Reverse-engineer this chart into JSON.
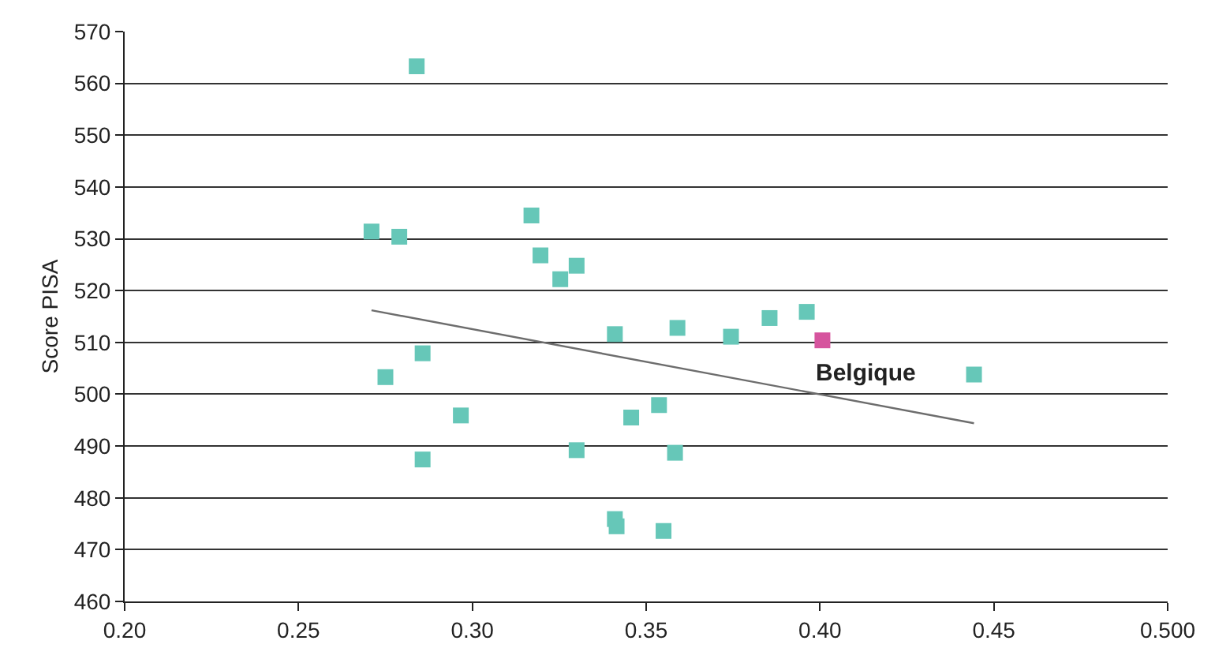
{
  "chart_data": {
    "type": "scatter",
    "ylabel": "Score PISA",
    "xlim": [
      0.2,
      0.5
    ],
    "xticks": [
      {
        "value": 0.2,
        "label": "0.20"
      },
      {
        "value": 0.25,
        "label": "0.25"
      },
      {
        "value": 0.3,
        "label": "0.30"
      },
      {
        "value": 0.35,
        "label": "0.35"
      },
      {
        "value": 0.4,
        "label": "0.40"
      },
      {
        "value": 0.45,
        "label": "0.45"
      },
      {
        "value": 0.5,
        "label": "0.500"
      }
    ],
    "ylim": [
      460,
      570
    ],
    "yticks": [
      460,
      470,
      480,
      490,
      500,
      510,
      520,
      530,
      540,
      550,
      560,
      570
    ],
    "grid": "y",
    "marker": "square",
    "series": [
      {
        "x": [
          0.284,
          0.271,
          0.279,
          0.317,
          0.3196,
          0.33,
          0.3253,
          0.341,
          0.359,
          0.3744,
          0.2857,
          0.275,
          0.2967,
          0.3457,
          0.3537,
          0.33,
          0.3583,
          0.2857,
          0.341,
          0.3415,
          0.355,
          0.3855,
          0.3962,
          0.4007,
          0.4443
        ],
        "values": [
          563.3,
          531.4,
          530.4,
          534.5,
          526.8,
          524.8,
          522.2,
          511.6,
          512.8,
          511.1,
          507.9,
          503.3,
          495.9,
          495.5,
          497.9,
          489.2,
          488.7,
          487.4,
          475.9,
          474.5,
          473.6,
          514.7,
          515.9,
          510.4,
          503.8
        ],
        "colors": [
          "#66c7b8",
          "#66c7b8",
          "#66c7b8",
          "#66c7b8",
          "#66c7b8",
          "#66c7b8",
          "#66c7b8",
          "#66c7b8",
          "#66c7b8",
          "#66c7b8",
          "#66c7b8",
          "#66c7b8",
          "#66c7b8",
          "#66c7b8",
          "#66c7b8",
          "#66c7b8",
          "#66c7b8",
          "#66c7b8",
          "#66c7b8",
          "#66c7b8",
          "#66c7b8",
          "#66c7b8",
          "#66c7b8",
          "#d6549e",
          "#66c7b8"
        ]
      },
      {
        "type": "line",
        "x": [
          0.271,
          0.4443
        ],
        "values": [
          516.2,
          494.4
        ],
        "color": "#6d6d6d",
        "marker": "none"
      }
    ],
    "annotations": [
      {
        "text": "Belgique",
        "x": 0.4007,
        "y": 510.4
      }
    ]
  }
}
